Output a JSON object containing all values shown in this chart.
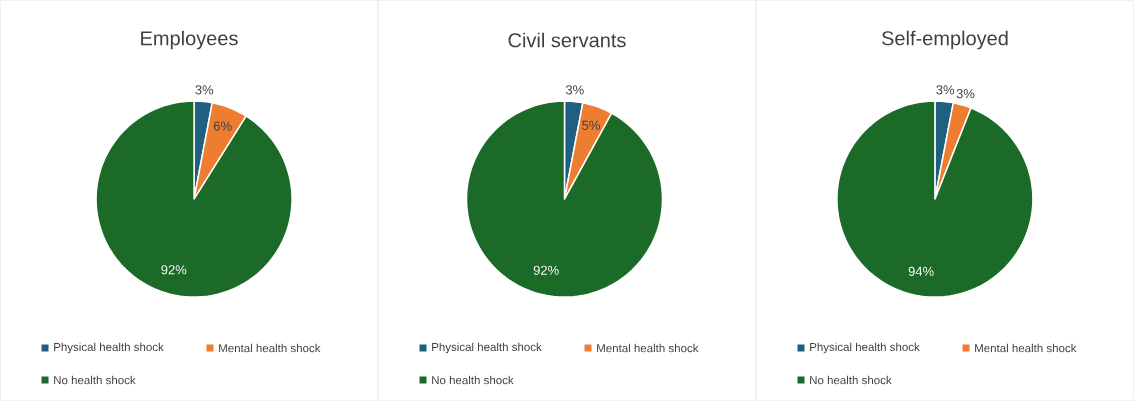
{
  "chart_data": [
    {
      "type": "pie",
      "title": "Employees",
      "categories": [
        "Physical health shock",
        "Mental health shock",
        "No health shock"
      ],
      "values": [
        3,
        6,
        92
      ],
      "value_labels": [
        "3%",
        "6%",
        "92%"
      ],
      "colors": [
        "#1f5f7f",
        "#ed7d31",
        "#1b6a27"
      ],
      "legend": "bottom"
    },
    {
      "type": "pie",
      "title": "Civil servants",
      "categories": [
        "Physical health shock",
        "Mental health shock",
        "No health shock"
      ],
      "values": [
        3,
        5,
        92
      ],
      "value_labels": [
        "3%",
        "5%",
        "92%"
      ],
      "colors": [
        "#1f5f7f",
        "#ed7d31",
        "#1b6a27"
      ],
      "legend": "bottom"
    },
    {
      "type": "pie",
      "title": "Self-employed",
      "categories": [
        "Physical health shock",
        "Mental health shock",
        "No health shock"
      ],
      "values": [
        3,
        3,
        94
      ],
      "value_labels": [
        "3%",
        "3%",
        "94%"
      ],
      "colors": [
        "#1f5f7f",
        "#ed7d31",
        "#1b6a27"
      ],
      "legend": "bottom"
    }
  ]
}
